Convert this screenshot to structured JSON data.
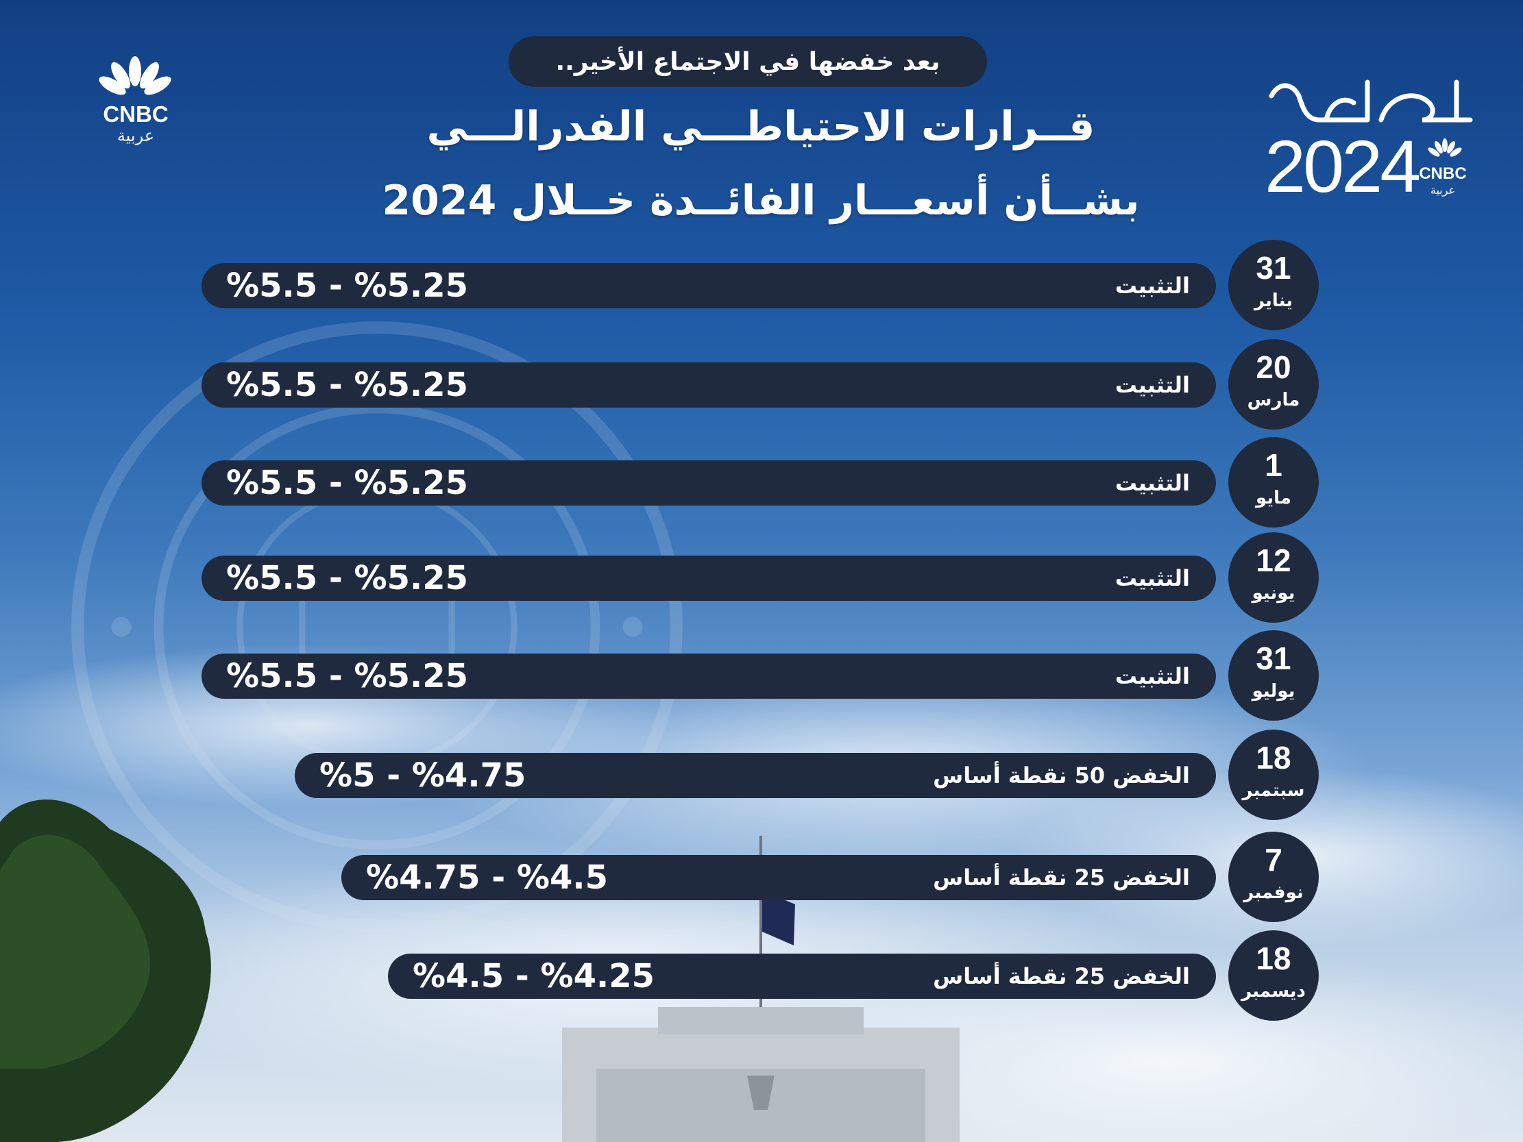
{
  "intro": "بعد خفضها في الاجتماع الأخير..",
  "title_line1": "قــرارات الاحتياطـــي الفدرالـــي",
  "title_line2": "بشــأن أسعـــار الفائــدة خــلال 2024",
  "brand": {
    "name": "CNBC",
    "arabic": "عربية"
  },
  "hasad": {
    "year": "2024",
    "name": "CNBC",
    "arabic": "عربية"
  },
  "decisions": [
    {
      "day": "31",
      "month": "يناير",
      "decision": "التثبيت",
      "rate": "%5.5 - %5.25"
    },
    {
      "day": "20",
      "month": "مارس",
      "decision": "التثبيت",
      "rate": "%5.5 - %5.25"
    },
    {
      "day": "1",
      "month": "مايو",
      "decision": "التثبيت",
      "rate": "%5.5 - %5.25"
    },
    {
      "day": "12",
      "month": "يونيو",
      "decision": "التثبيت",
      "rate": "%5.5 - %5.25"
    },
    {
      "day": "31",
      "month": "يوليو",
      "decision": "التثبيت",
      "rate": "%5.5 - %5.25"
    },
    {
      "day": "18",
      "month": "سبتمبر",
      "decision": "الخفض 50 نقطة أساس",
      "rate": "%5 - %4.75"
    },
    {
      "day": "7",
      "month": "نوفمبر",
      "decision": "الخفض 25 نقطة أساس",
      "rate": "%4.75  -  %4.5"
    },
    {
      "day": "18",
      "month": "ديسمبر",
      "decision": "الخفض 25 نقطة أساس",
      "rate": "%4.5 - %4.25"
    }
  ]
}
